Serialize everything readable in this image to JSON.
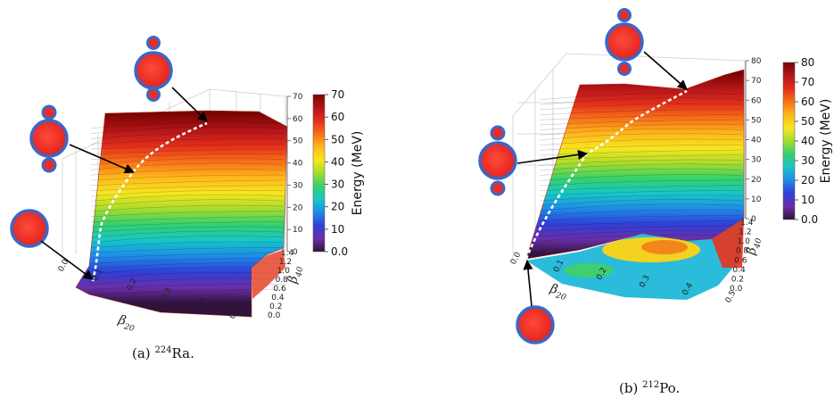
{
  "chart_data": [
    {
      "type": "surface3d",
      "caption_prefix": "(a)",
      "caption_mass": "224",
      "caption_element": "Ra.",
      "xlabel_sym": "β",
      "xlabel_sub": "20",
      "ylabel_sym": "β",
      "ylabel_sub": "40",
      "zlabel": "",
      "x_ticks": [
        "0.0",
        "0.1",
        "0.2",
        "0.3",
        "0.4",
        "0.5"
      ],
      "y_ticks": [
        "0.0",
        "0.2",
        "0.4",
        "0.6",
        "0.8",
        "1.0",
        "1.2",
        "1.4"
      ],
      "z_ticks": [
        "0",
        "10",
        "20",
        "30",
        "40",
        "50",
        "60",
        "70"
      ],
      "zlim": [
        0,
        70
      ],
      "colorbar_title": "Energy (MeV)",
      "colorbar_ticks": [
        "70",
        "60",
        "50",
        "40",
        "30",
        "20",
        "10",
        "0.0"
      ],
      "colorbar_range": [
        0,
        70
      ],
      "path_energy_start": 2,
      "path_energy_end": 59
    },
    {
      "type": "surface3d",
      "caption_prefix": "(b)",
      "caption_mass": "212",
      "caption_element": "Po.",
      "xlabel_sym": "β",
      "xlabel_sub": "20",
      "ylabel_sym": "β",
      "ylabel_sub": "40",
      "zlabel": "",
      "x_ticks": [
        "0.0",
        "0.1",
        "0.2",
        "0.3",
        "0.4",
        "0.5"
      ],
      "y_ticks": [
        "0.0",
        "0.2",
        "0.4",
        "0.6",
        "0.8",
        "1.0",
        "1.2",
        "1.4"
      ],
      "z_ticks": [
        "0",
        "10",
        "20",
        "30",
        "40",
        "50",
        "60",
        "70",
        "80"
      ],
      "zlim": [
        0,
        80
      ],
      "colorbar_title": "Energy (MeV)",
      "colorbar_ticks": [
        "80",
        "70",
        "60",
        "50",
        "40",
        "30",
        "20",
        "10",
        "0.0"
      ],
      "colorbar_range": [
        0,
        80
      ],
      "path_energy_start": 0,
      "path_energy_end": 71
    }
  ],
  "colormap": [
    "#30123b",
    "#6a2fa8",
    "#3040d8",
    "#1f8be8",
    "#18c6c8",
    "#35d06e",
    "#a7dc2c",
    "#f7e620",
    "#ffb71c",
    "#f8701a",
    "#e32e1c",
    "#b31518",
    "#7a0403"
  ],
  "colors": {
    "nucleus_fill": "#ee2a24",
    "nucleus_ring": "#3b67c8"
  }
}
